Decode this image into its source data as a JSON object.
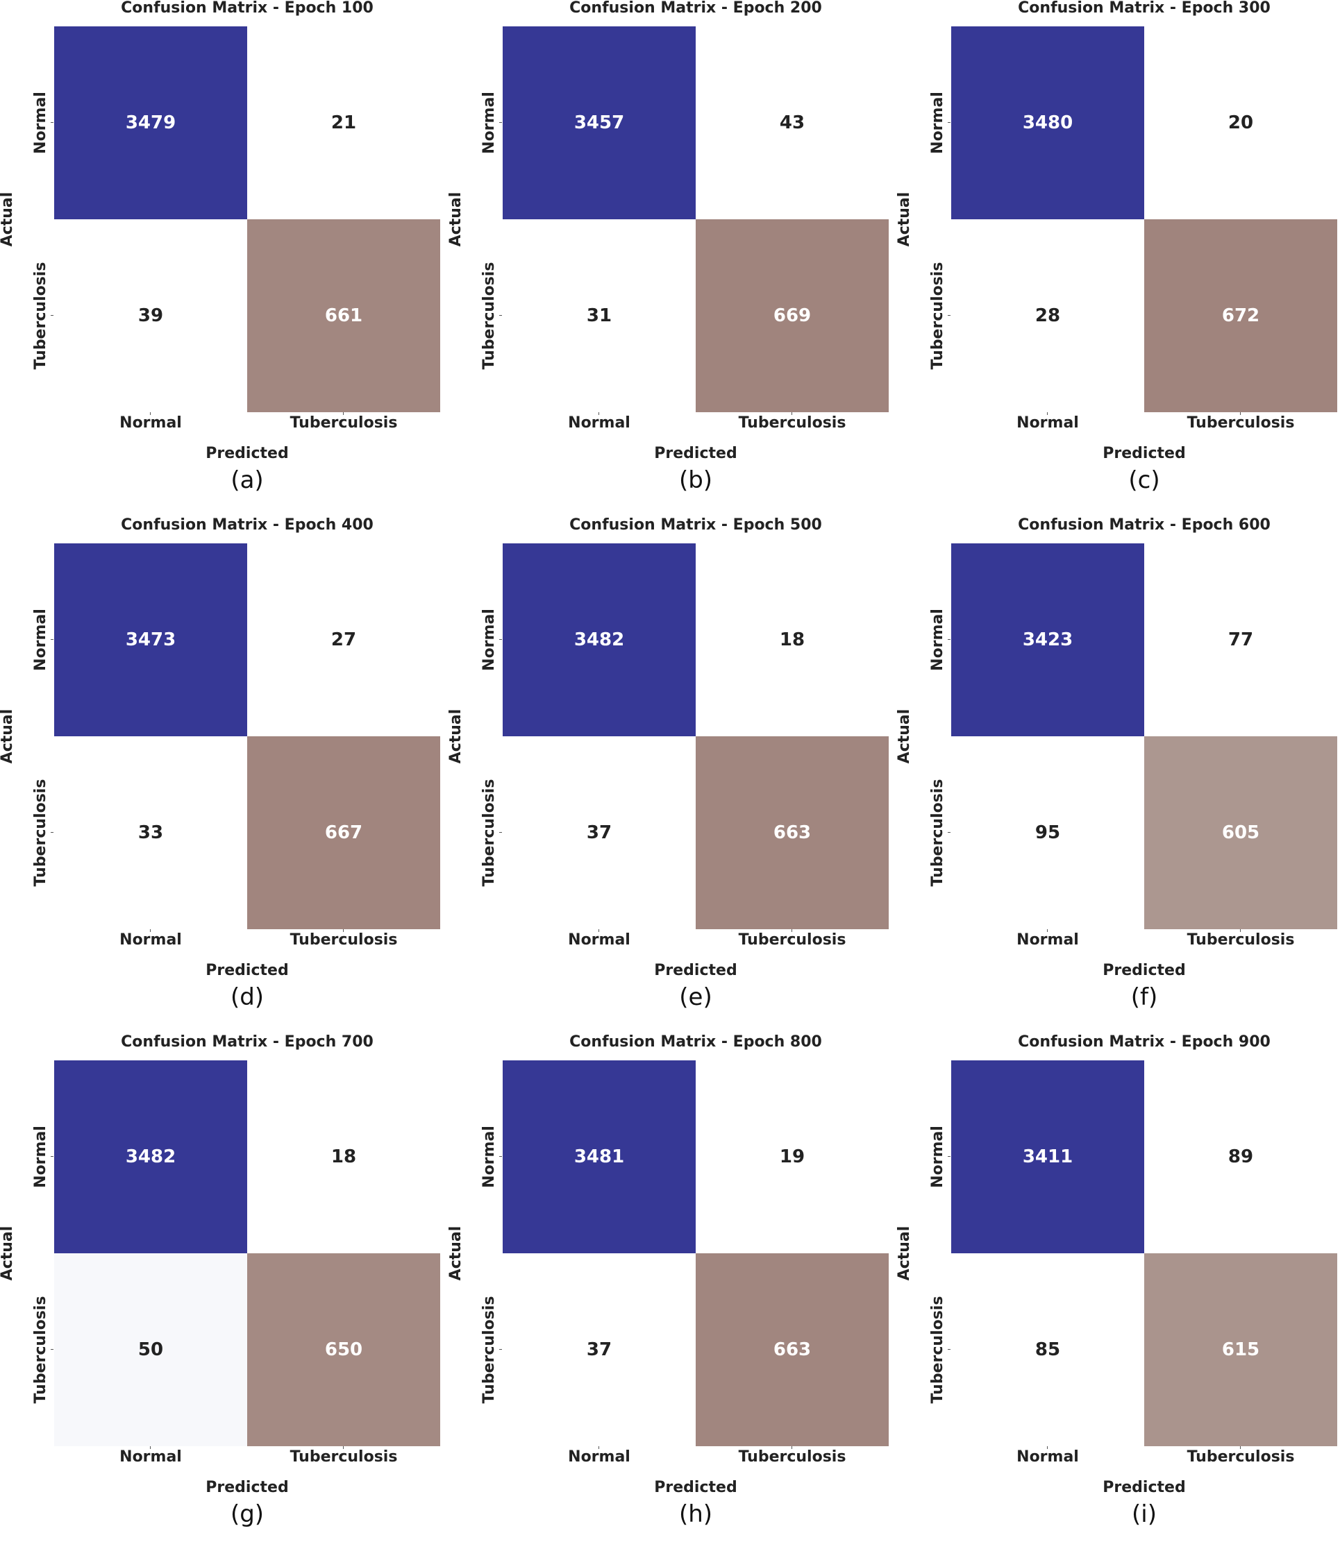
{
  "chart_data": [
    {
      "type": "heatmap",
      "title": "Confusion Matrix - Epoch 100",
      "caption": "(a)",
      "xlabel": "Predicted",
      "ylabel": "Actual",
      "x_categories": [
        "Normal",
        "Tuberculosis"
      ],
      "y_categories": [
        "Normal",
        "Tuberculosis"
      ],
      "values": [
        [
          3479,
          21
        ],
        [
          39,
          661
        ]
      ]
    },
    {
      "type": "heatmap",
      "title": "Confusion Matrix - Epoch 200",
      "caption": "(b)",
      "xlabel": "Predicted",
      "ylabel": "Actual",
      "x_categories": [
        "Normal",
        "Tuberculosis"
      ],
      "y_categories": [
        "Normal",
        "Tuberculosis"
      ],
      "values": [
        [
          3457,
          43
        ],
        [
          31,
          669
        ]
      ]
    },
    {
      "type": "heatmap",
      "title": "Confusion Matrix - Epoch 300",
      "caption": "(c)",
      "xlabel": "Predicted",
      "ylabel": "Actual",
      "x_categories": [
        "Normal",
        "Tuberculosis"
      ],
      "y_categories": [
        "Normal",
        "Tuberculosis"
      ],
      "values": [
        [
          3480,
          20
        ],
        [
          28,
          672
        ]
      ]
    },
    {
      "type": "heatmap",
      "title": "Confusion Matrix - Epoch 400",
      "caption": "(d)",
      "xlabel": "Predicted",
      "ylabel": "Actual",
      "x_categories": [
        "Normal",
        "Tuberculosis"
      ],
      "y_categories": [
        "Normal",
        "Tuberculosis"
      ],
      "values": [
        [
          3473,
          27
        ],
        [
          33,
          667
        ]
      ]
    },
    {
      "type": "heatmap",
      "title": "Confusion Matrix - Epoch 500",
      "caption": "(e)",
      "xlabel": "Predicted",
      "ylabel": "Actual",
      "x_categories": [
        "Normal",
        "Tuberculosis"
      ],
      "y_categories": [
        "Normal",
        "Tuberculosis"
      ],
      "values": [
        [
          3482,
          18
        ],
        [
          37,
          663
        ]
      ]
    },
    {
      "type": "heatmap",
      "title": "Confusion Matrix - Epoch 600",
      "caption": "(f)",
      "xlabel": "Predicted",
      "ylabel": "Actual",
      "x_categories": [
        "Normal",
        "Tuberculosis"
      ],
      "y_categories": [
        "Normal",
        "Tuberculosis"
      ],
      "values": [
        [
          3423,
          77
        ],
        [
          95,
          605
        ]
      ]
    },
    {
      "type": "heatmap",
      "title": "Confusion Matrix - Epoch 700",
      "caption": "(g)",
      "xlabel": "Predicted",
      "ylabel": "Actual",
      "x_categories": [
        "Normal",
        "Tuberculosis"
      ],
      "y_categories": [
        "Normal",
        "Tuberculosis"
      ],
      "values": [
        [
          3482,
          18
        ],
        [
          50,
          650
        ]
      ]
    },
    {
      "type": "heatmap",
      "title": "Confusion Matrix - Epoch 800",
      "caption": "(h)",
      "xlabel": "Predicted",
      "ylabel": "Actual",
      "x_categories": [
        "Normal",
        "Tuberculosis"
      ],
      "y_categories": [
        "Normal",
        "Tuberculosis"
      ],
      "values": [
        [
          3481,
          19
        ],
        [
          37,
          663
        ]
      ]
    },
    {
      "type": "heatmap",
      "title": "Confusion Matrix - Epoch 900",
      "caption": "(i)",
      "xlabel": "Predicted",
      "ylabel": "Actual",
      "x_categories": [
        "Normal",
        "Tuberculosis"
      ],
      "y_categories": [
        "Normal",
        "Tuberculosis"
      ],
      "values": [
        [
          3411,
          89
        ],
        [
          85,
          615
        ]
      ]
    }
  ],
  "colors": {
    "normal_high": "#363895",
    "tb_high": "#a0847d",
    "tb_light": "#ad9891",
    "low": "#ffffff",
    "low_tint": "#f7f8fb",
    "text_dark": "#222222",
    "text_light": "#ffffff"
  }
}
